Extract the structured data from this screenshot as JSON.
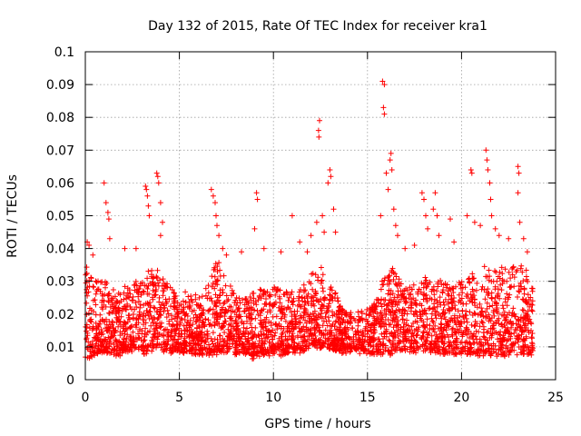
{
  "chart_data": {
    "type": "scatter",
    "title": "Day 132 of 2015, Rate Of TEC Index for receiver kra1",
    "xlabel": "GPS time / hours",
    "ylabel": "ROTI / TECUs",
    "xlim": [
      0,
      25
    ],
    "ylim": [
      0,
      0.1
    ],
    "xticks": [
      0,
      5,
      10,
      15,
      20,
      25
    ],
    "yticks": [
      0,
      0.01,
      0.02,
      0.03,
      0.04,
      0.05,
      0.06,
      0.07,
      0.08,
      0.09,
      0.1
    ],
    "xtick_labels": [
      "0",
      "5",
      "10",
      "15",
      "20",
      "25"
    ],
    "ytick_labels": [
      "0",
      "0.01",
      "0.02",
      "0.03",
      "0.04",
      "0.05",
      "0.06",
      "0.07",
      "0.08",
      "0.09",
      "0.1"
    ],
    "grid": true,
    "marker": "+",
    "color": "#ff0000",
    "envelope": {
      "x": [
        0,
        0.5,
        1,
        1.5,
        2,
        2.5,
        3,
        3.5,
        4,
        4.5,
        5,
        5.5,
        6,
        6.5,
        7,
        7.5,
        8,
        8.5,
        9,
        9.5,
        10,
        10.5,
        11,
        11.5,
        12,
        12.5,
        13,
        13.5,
        14,
        14.5,
        15,
        15.5,
        16,
        16.5,
        17,
        17.5,
        18,
        18.5,
        19,
        19.5,
        20,
        20.5,
        21,
        21.5,
        22,
        22.5,
        23,
        23.5,
        23.8
      ],
      "low": [
        0.006,
        0.008,
        0.009,
        0.008,
        0.008,
        0.009,
        0.008,
        0.009,
        0.009,
        0.009,
        0.008,
        0.009,
        0.008,
        0.008,
        0.008,
        0.009,
        0.008,
        0.008,
        0.007,
        0.008,
        0.008,
        0.008,
        0.009,
        0.009,
        0.01,
        0.01,
        0.01,
        0.009,
        0.009,
        0.009,
        0.008,
        0.008,
        0.008,
        0.009,
        0.009,
        0.009,
        0.009,
        0.009,
        0.008,
        0.008,
        0.008,
        0.008,
        0.008,
        0.008,
        0.008,
        0.008,
        0.008,
        0.008,
        0.008
      ],
      "high": [
        0.035,
        0.031,
        0.032,
        0.027,
        0.027,
        0.03,
        0.032,
        0.034,
        0.033,
        0.03,
        0.025,
        0.027,
        0.025,
        0.03,
        0.036,
        0.032,
        0.026,
        0.027,
        0.026,
        0.027,
        0.03,
        0.027,
        0.027,
        0.029,
        0.034,
        0.034,
        0.029,
        0.024,
        0.02,
        0.02,
        0.022,
        0.024,
        0.036,
        0.033,
        0.028,
        0.03,
        0.032,
        0.032,
        0.03,
        0.028,
        0.03,
        0.032,
        0.034,
        0.035,
        0.034,
        0.034,
        0.036,
        0.034,
        0.029
      ]
    },
    "outliers": [
      {
        "x": 0.1,
        "y": 0.042
      },
      {
        "x": 0.2,
        "y": 0.041
      },
      {
        "x": 0.4,
        "y": 0.038
      },
      {
        "x": 1.0,
        "y": 0.06
      },
      {
        "x": 1.1,
        "y": 0.054
      },
      {
        "x": 1.2,
        "y": 0.051
      },
      {
        "x": 1.25,
        "y": 0.049
      },
      {
        "x": 1.3,
        "y": 0.043
      },
      {
        "x": 2.1,
        "y": 0.04
      },
      {
        "x": 2.7,
        "y": 0.04
      },
      {
        "x": 3.2,
        "y": 0.059
      },
      {
        "x": 3.25,
        "y": 0.058
      },
      {
        "x": 3.3,
        "y": 0.056
      },
      {
        "x": 3.35,
        "y": 0.053
      },
      {
        "x": 3.4,
        "y": 0.05
      },
      {
        "x": 3.8,
        "y": 0.063
      },
      {
        "x": 3.85,
        "y": 0.062
      },
      {
        "x": 3.9,
        "y": 0.06
      },
      {
        "x": 4.0,
        "y": 0.054
      },
      {
        "x": 4.1,
        "y": 0.048
      },
      {
        "x": 4.0,
        "y": 0.044
      },
      {
        "x": 6.7,
        "y": 0.058
      },
      {
        "x": 6.8,
        "y": 0.056
      },
      {
        "x": 6.9,
        "y": 0.054
      },
      {
        "x": 6.95,
        "y": 0.05
      },
      {
        "x": 7.0,
        "y": 0.047
      },
      {
        "x": 7.1,
        "y": 0.044
      },
      {
        "x": 7.3,
        "y": 0.04
      },
      {
        "x": 7.5,
        "y": 0.038
      },
      {
        "x": 8.3,
        "y": 0.039
      },
      {
        "x": 9.1,
        "y": 0.057
      },
      {
        "x": 9.15,
        "y": 0.055
      },
      {
        "x": 9.0,
        "y": 0.046
      },
      {
        "x": 9.5,
        "y": 0.04
      },
      {
        "x": 10.4,
        "y": 0.039
      },
      {
        "x": 11.0,
        "y": 0.05
      },
      {
        "x": 11.4,
        "y": 0.042
      },
      {
        "x": 11.8,
        "y": 0.039
      },
      {
        "x": 12.0,
        "y": 0.044
      },
      {
        "x": 12.3,
        "y": 0.048
      },
      {
        "x": 12.45,
        "y": 0.079
      },
      {
        "x": 12.4,
        "y": 0.076
      },
      {
        "x": 12.42,
        "y": 0.074
      },
      {
        "x": 12.6,
        "y": 0.05
      },
      {
        "x": 12.7,
        "y": 0.045
      },
      {
        "x": 12.9,
        "y": 0.06
      },
      {
        "x": 13.0,
        "y": 0.064
      },
      {
        "x": 13.05,
        "y": 0.062
      },
      {
        "x": 13.2,
        "y": 0.052
      },
      {
        "x": 13.3,
        "y": 0.045
      },
      {
        "x": 15.7,
        "y": 0.05
      },
      {
        "x": 15.8,
        "y": 0.091
      },
      {
        "x": 15.9,
        "y": 0.09
      },
      {
        "x": 15.85,
        "y": 0.083
      },
      {
        "x": 15.9,
        "y": 0.081
      },
      {
        "x": 16.0,
        "y": 0.063
      },
      {
        "x": 16.1,
        "y": 0.058
      },
      {
        "x": 16.2,
        "y": 0.067
      },
      {
        "x": 16.25,
        "y": 0.069
      },
      {
        "x": 16.3,
        "y": 0.064
      },
      {
        "x": 16.4,
        "y": 0.052
      },
      {
        "x": 16.5,
        "y": 0.047
      },
      {
        "x": 16.6,
        "y": 0.044
      },
      {
        "x": 17.0,
        "y": 0.04
      },
      {
        "x": 17.5,
        "y": 0.041
      },
      {
        "x": 17.9,
        "y": 0.057
      },
      {
        "x": 18.0,
        "y": 0.055
      },
      {
        "x": 18.1,
        "y": 0.05
      },
      {
        "x": 18.2,
        "y": 0.046
      },
      {
        "x": 18.5,
        "y": 0.052
      },
      {
        "x": 18.6,
        "y": 0.057
      },
      {
        "x": 18.7,
        "y": 0.05
      },
      {
        "x": 18.8,
        "y": 0.044
      },
      {
        "x": 19.4,
        "y": 0.049
      },
      {
        "x": 19.6,
        "y": 0.042
      },
      {
        "x": 20.3,
        "y": 0.05
      },
      {
        "x": 20.5,
        "y": 0.064
      },
      {
        "x": 20.55,
        "y": 0.063
      },
      {
        "x": 20.7,
        "y": 0.048
      },
      {
        "x": 21.0,
        "y": 0.047
      },
      {
        "x": 21.3,
        "y": 0.07
      },
      {
        "x": 21.35,
        "y": 0.067
      },
      {
        "x": 21.4,
        "y": 0.064
      },
      {
        "x": 21.5,
        "y": 0.06
      },
      {
        "x": 21.55,
        "y": 0.055
      },
      {
        "x": 21.6,
        "y": 0.05
      },
      {
        "x": 21.8,
        "y": 0.046
      },
      {
        "x": 22.0,
        "y": 0.044
      },
      {
        "x": 22.5,
        "y": 0.043
      },
      {
        "x": 23.0,
        "y": 0.065
      },
      {
        "x": 23.05,
        "y": 0.063
      },
      {
        "x": 23.0,
        "y": 0.057
      },
      {
        "x": 23.1,
        "y": 0.048
      },
      {
        "x": 23.3,
        "y": 0.043
      },
      {
        "x": 23.5,
        "y": 0.039
      }
    ]
  }
}
